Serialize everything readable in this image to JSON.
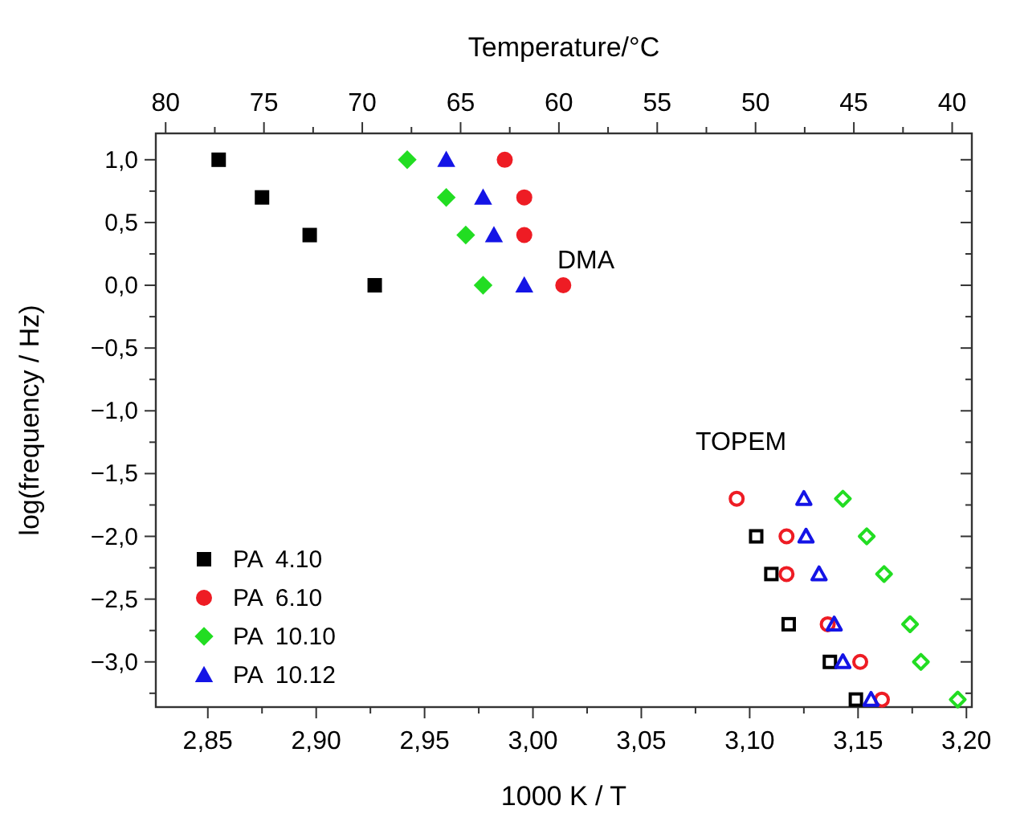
{
  "chart_data": {
    "type": "scatter",
    "xlabel": "1000 K / T",
    "ylabel": "log(frequency / Hz)",
    "x2label": "Temperature/°C",
    "xlim": [
      2.826,
      3.2025
    ],
    "ylim": [
      -3.36,
      1.21
    ],
    "xticks": [
      {
        "value": 2.85,
        "label": "2,85"
      },
      {
        "value": 2.875,
        "label": null
      },
      {
        "value": 2.9,
        "label": "2,90"
      },
      {
        "value": 2.925,
        "label": null
      },
      {
        "value": 2.95,
        "label": "2,95"
      },
      {
        "value": 2.975,
        "label": null
      },
      {
        "value": 3.0,
        "label": "3,00"
      },
      {
        "value": 3.025,
        "label": null
      },
      {
        "value": 3.05,
        "label": "3,05"
      },
      {
        "value": 3.075,
        "label": null
      },
      {
        "value": 3.1,
        "label": "3,10"
      },
      {
        "value": 3.125,
        "label": null
      },
      {
        "value": 3.15,
        "label": "3,15"
      },
      {
        "value": 3.175,
        "label": null
      },
      {
        "value": 3.2,
        "label": "3,20"
      }
    ],
    "x2lim": [
      80.5,
      39.0
    ],
    "x2ticks": [
      80,
      {
        "value": 77.5,
        "label": null
      },
      75,
      {
        "value": 72.5,
        "label": null
      },
      70,
      {
        "value": 67.5,
        "label": null
      },
      65,
      {
        "value": 62.5,
        "label": null
      },
      60,
      {
        "value": 57.5,
        "label": null
      },
      55,
      {
        "value": 52.5,
        "label": null
      },
      50,
      {
        "value": 47.5,
        "label": null
      },
      45,
      {
        "value": 42.5,
        "label": null
      },
      40
    ],
    "yticks": [
      {
        "value": 1.0,
        "label": "1,0"
      },
      {
        "value": 0.75,
        "label": null
      },
      {
        "value": 0.5,
        "label": "0,5"
      },
      {
        "value": 0.25,
        "label": null
      },
      {
        "value": 0.0,
        "label": "0,0"
      },
      {
        "value": -0.25,
        "label": null
      },
      {
        "value": -0.5,
        "label": "−0,5"
      },
      {
        "value": -0.75,
        "label": null
      },
      {
        "value": -1.0,
        "label": "−1,0"
      },
      {
        "value": -1.25,
        "label": null
      },
      {
        "value": -1.5,
        "label": "−1,5"
      },
      {
        "value": -1.75,
        "label": null
      },
      {
        "value": -2.0,
        "label": "−2,0"
      },
      {
        "value": -2.25,
        "label": null
      },
      {
        "value": -2.5,
        "label": "−2,5"
      },
      {
        "value": -2.75,
        "label": null
      },
      {
        "value": -3.0,
        "label": "−3,0"
      },
      {
        "value": -3.25,
        "label": null
      }
    ],
    "grid": false,
    "legend": "bottom left",
    "annotations": [
      "DMA",
      "TOPEM"
    ],
    "series": [
      {
        "name": "PA  4.10",
        "color": "#000000",
        "marker": "square",
        "x": [
          2.855,
          2.875,
          2.897,
          2.927
        ],
        "values": [
          1.0,
          0.7,
          0.4,
          0.0
        ]
      },
      {
        "name": "PA  6.10",
        "color": "#ee1c24",
        "marker": "circle",
        "x": [
          2.987,
          2.996,
          2.996,
          3.014
        ],
        "values": [
          1.0,
          0.7,
          0.4,
          0.0
        ]
      },
      {
        "name": "PA  10.10",
        "color": "#22dd22",
        "marker": "diamond",
        "x": [
          2.942,
          2.96,
          2.969,
          2.977
        ],
        "values": [
          1.0,
          0.7,
          0.4,
          0.0
        ]
      },
      {
        "name": "PA  10.12",
        "color": "#1414e6",
        "marker": "triangle",
        "x": [
          2.96,
          2.977,
          2.982,
          2.996
        ],
        "values": [
          1.0,
          0.7,
          0.4,
          0.0
        ]
      },
      {
        "color": "#000000",
        "marker": "square",
        "x": [
          3.103,
          3.11,
          3.118,
          3.137,
          3.149
        ],
        "values": [
          -2.0,
          -2.3,
          -2.7,
          -3.0,
          -3.3
        ]
      },
      {
        "color": "#ee1c24",
        "marker": "circle",
        "x": [
          3.094,
          3.117,
          3.117,
          3.136,
          3.151,
          3.161
        ],
        "values": [
          -1.7,
          -2.0,
          -2.3,
          -2.7,
          -3.0,
          -3.3
        ]
      },
      {
        "color": "#22dd22",
        "marker": "diamond",
        "x": [
          3.143,
          3.154,
          3.162,
          3.174,
          3.179,
          3.196
        ],
        "values": [
          -1.7,
          -2.0,
          -2.3,
          -2.7,
          -3.0,
          -3.3
        ]
      },
      {
        "color": "#1414e6",
        "marker": "triangle",
        "x": [
          3.125,
          3.126,
          3.132,
          3.139,
          3.143,
          3.156
        ],
        "values": [
          -1.7,
          -2.0,
          -2.3,
          -2.7,
          -3.0,
          -3.3
        ]
      }
    ]
  }
}
